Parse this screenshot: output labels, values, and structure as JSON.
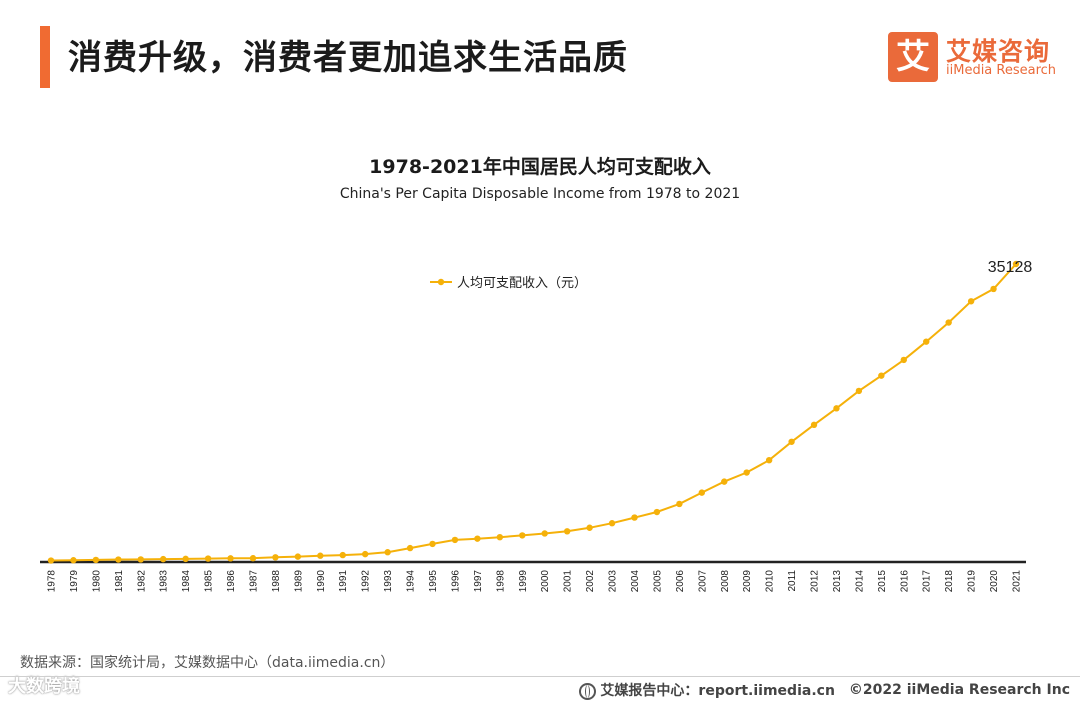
{
  "header": {
    "title": "消费升级，消费者更加追求生活品质"
  },
  "logo": {
    "mark": "艾",
    "name_cn": "艾媒咨询",
    "name_en": "iiMedia Research"
  },
  "colors": {
    "accent": "#f06b32",
    "series": "#f5b10a",
    "axis": "#222222"
  },
  "chart_data": {
    "type": "line",
    "title": "1978-2021年中国居民人均可支配收入",
    "subtitle": "China's Per Capita Disposable Income from 1978 to 2021",
    "legend": "人均可支配收入（元）",
    "legend_position": "top-center",
    "grid": false,
    "ylim": [
      0,
      35128
    ],
    "x": [
      "1978",
      "1979",
      "1980",
      "1981",
      "1982",
      "1983",
      "1984",
      "1985",
      "1986",
      "1987",
      "1988",
      "1989",
      "1990",
      "1991",
      "1992",
      "1993",
      "1994",
      "1995",
      "1996",
      "1997",
      "1998",
      "1999",
      "2000",
      "2001",
      "2002",
      "2003",
      "2004",
      "2005",
      "2006",
      "2007",
      "2008",
      "2009",
      "2010",
      "2011",
      "2012",
      "2013",
      "2014",
      "2015",
      "2016",
      "2017",
      "2018",
      "2019",
      "2020",
      "2021"
    ],
    "series": [
      {
        "name": "人均可支配收入（元）",
        "values": [
          171,
          207,
          248,
          290,
          301,
          338,
          369,
          406,
          433,
          446,
          553,
          633,
          742,
          812,
          928,
          1153,
          1639,
          2134,
          2604,
          2750,
          2926,
          3134,
          3362,
          3618,
          4036,
          4573,
          5237,
          5891,
          6843,
          8179,
          9474,
          10548,
          12001,
          14173,
          16170,
          18115,
          20167,
          21966,
          23821,
          25974,
          28228,
          30733,
          32189,
          35128
        ]
      }
    ],
    "labeled_point": {
      "index": 43,
      "label": "35128"
    }
  },
  "footer": {
    "source": "数据来源：国家统计局，艾媒数据中心（data.iimedia.cn）",
    "report_site": "艾媒报告中心：report.iimedia.cn",
    "copyright": "©2022  iiMedia Research  Inc",
    "watermark": "大数跨境"
  }
}
